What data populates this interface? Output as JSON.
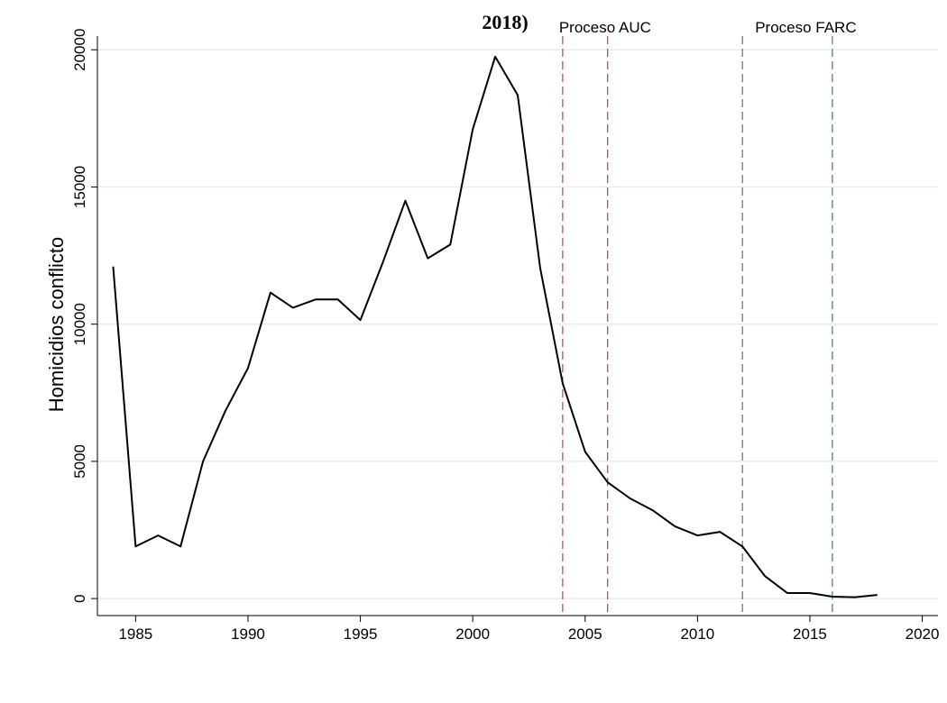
{
  "chart_data": {
    "type": "line",
    "title": "2018)",
    "y_label": "Homicidios conflicto",
    "x": [
      1984,
      1985,
      1986,
      1987,
      1988,
      1989,
      1990,
      1991,
      1992,
      1993,
      1994,
      1995,
      1996,
      1997,
      1998,
      1999,
      2000,
      2001,
      2002,
      2003,
      2004,
      2005,
      2006,
      2007,
      2008,
      2009,
      2010,
      2011,
      2012,
      2013,
      2014,
      2015,
      2016,
      2017,
      2018
    ],
    "series": [
      {
        "name": "Homicidios conflicto",
        "color": "#000000",
        "values": [
          12100,
          1900,
          2300,
          1900,
          5000,
          6850,
          8400,
          11150,
          10600,
          10900,
          10900,
          10150,
          12250,
          14500,
          12400,
          12900,
          17100,
          19750,
          18350,
          12050,
          7850,
          5350,
          4240,
          3650,
          3220,
          2630,
          2300,
          2430,
          1900,
          820,
          200,
          200,
          70,
          50,
          130
        ]
      }
    ],
    "xlim": [
      1983.3,
      2020.7
    ],
    "xticks": [
      1985,
      1990,
      1995,
      2000,
      2005,
      2010,
      2015,
      2020
    ],
    "ylim": [
      -620,
      20500
    ],
    "yticks": [
      0,
      5000,
      10000,
      15000,
      20000
    ],
    "grid": true,
    "annotations": [
      {
        "text": "Proceso AUC",
        "x": [
          2004,
          2006
        ],
        "color": "#c8476a"
      },
      {
        "text": "Proceso FARC",
        "x": [
          2012,
          2016
        ],
        "color": "#5a7a9a"
      }
    ]
  }
}
